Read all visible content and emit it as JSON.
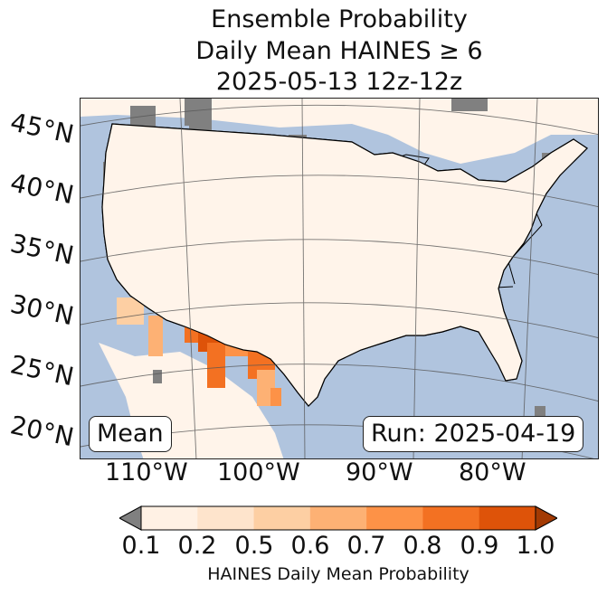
{
  "title": {
    "line1": "Ensemble Probability",
    "line2": "Daily Mean HAINES ≥ 6",
    "line3": "2025-05-13 12z-12z"
  },
  "map": {
    "latitude_labels": [
      "45°N",
      "40°N",
      "35°N",
      "30°N",
      "25°N",
      "20°N"
    ],
    "longitude_labels": [
      "110°W",
      "100°W",
      "90°W",
      "80°W"
    ],
    "colors": {
      "ocean": "#b0c4de",
      "land": "#fff4ea",
      "no_data": "#808080",
      "lakes": "#b0c4de"
    }
  },
  "badges": {
    "left": "Mean",
    "right": "Run: 2025-04-19"
  },
  "colorbar": {
    "ticks": [
      "0.1",
      "0.2",
      "0.5",
      "0.6",
      "0.7",
      "0.8",
      "0.9",
      "1.0"
    ],
    "colors": [
      "#fff1e4",
      "#fee4cc",
      "#fdcfa3",
      "#fdb174",
      "#fd9247",
      "#f37122",
      "#de5309"
    ],
    "under_color": "#808080",
    "over_color": "#a33a03",
    "label": "HAINES Daily Mean Probability"
  }
}
